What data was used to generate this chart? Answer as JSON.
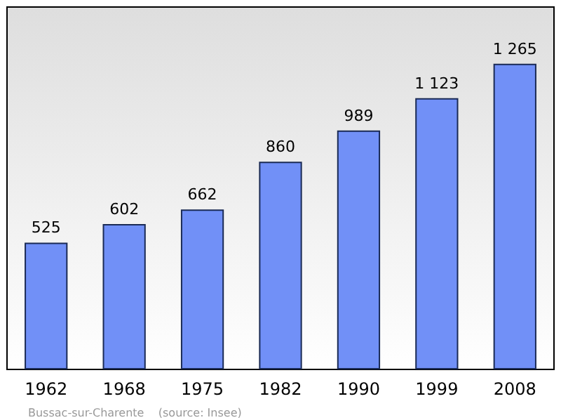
{
  "chart_data": {
    "type": "bar",
    "categories": [
      "1962",
      "1968",
      "1975",
      "1982",
      "1990",
      "1999",
      "2008"
    ],
    "values": [
      525,
      602,
      662,
      860,
      989,
      1123,
      1265
    ],
    "value_labels": [
      "525",
      "602",
      "662",
      "860",
      "989",
      "1 123",
      "1 265"
    ],
    "color": "#7190f7",
    "annotations": [
      "Bussac-sur-Charente    (source: Insee)"
    ],
    "grid": false
  }
}
